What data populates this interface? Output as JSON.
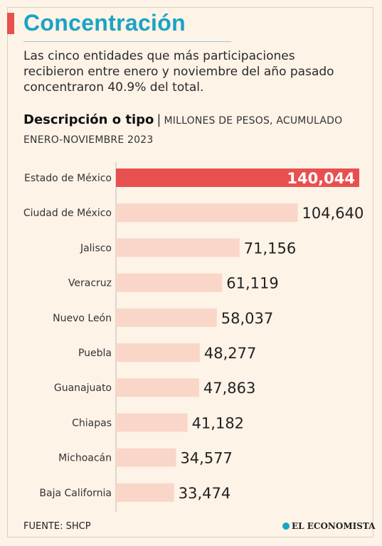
{
  "header": {
    "title": "Concentración",
    "subtitle": "Las cinco entidades que más participaciones recibieron entre enero y noviembre del año pasado concentraron 40.9% del total.",
    "desc_bold": "Descripción o tipo",
    "desc_sep": "|",
    "desc_light": "MILLONES DE PESOS, ACUMULADO ENERO-NOVIEMBRE 2023"
  },
  "colors": {
    "highlight": "#e8504f",
    "bar": "#f9d6c8",
    "title": "#1aa3c4",
    "background": "#fdf3e7"
  },
  "chart_data": {
    "type": "bar",
    "orientation": "horizontal",
    "categories": [
      "Estado de México",
      "Ciudad de México",
      "Jalisco",
      "Veracruz",
      "Nuevo León",
      "Puebla",
      "Guanajuato",
      "Chiapas",
      "Michoacán",
      "Baja California"
    ],
    "values": [
      140044,
      104640,
      71156,
      61119,
      58037,
      48277,
      47863,
      41182,
      34577,
      33474
    ],
    "value_labels": [
      "140,044",
      "104,640",
      "71,156",
      "61,119",
      "58,037",
      "48,277",
      "47,863",
      "41,182",
      "34,577",
      "33,474"
    ],
    "highlight_index": 0,
    "xlim": [
      0,
      140044
    ],
    "grid": false
  },
  "footer": {
    "source": "FUENTE: SHCP",
    "brand": "EL ECONOMISTA",
    "brand_icon": "el-economista-logo-icon"
  }
}
